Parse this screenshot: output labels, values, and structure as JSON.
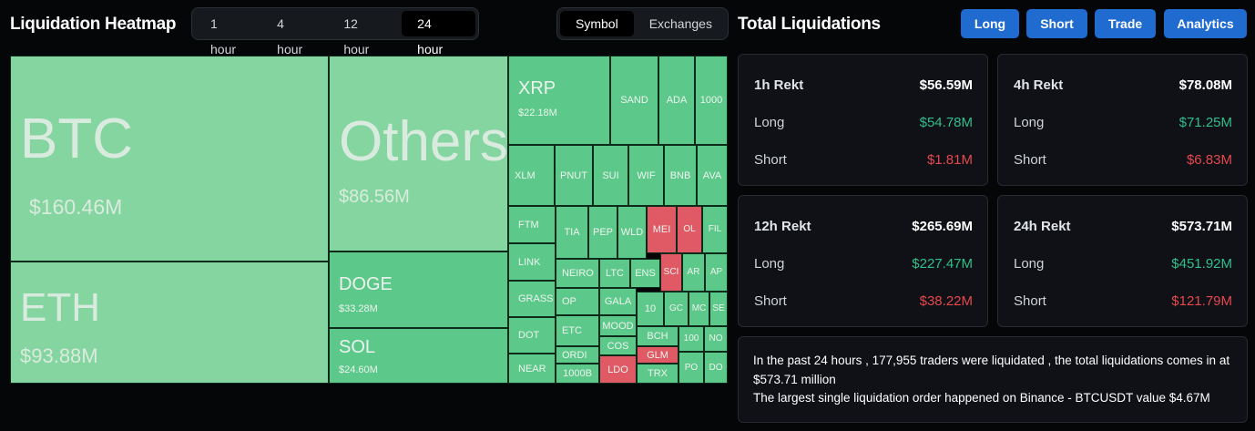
{
  "header": {
    "heatmap_title": "Liquidation Heatmap",
    "time_tabs": [
      "1 hour",
      "4 hour",
      "12 hour",
      "24 hour"
    ],
    "active_time_tab": "24 hour",
    "view_tabs": [
      "Symbol",
      "Exchanges"
    ],
    "active_view_tab": "Symbol",
    "totals_title": "Total Liquidations",
    "action_buttons": [
      "Long",
      "Short",
      "Trade",
      "Analytics"
    ]
  },
  "colors": {
    "long": "#5cc98a",
    "long_light": "#84d59f",
    "short": "#e05a65",
    "accent": "#1f6bd0"
  },
  "treemap": [
    {
      "sym": "BTC",
      "val": "$160.46M",
      "tone": "light",
      "size": "xl"
    },
    {
      "sym": "ETH",
      "val": "$93.88M",
      "tone": "light",
      "size": "lg"
    },
    {
      "sym": "Others",
      "val": "$86.56M",
      "tone": "light",
      "size": "xl"
    },
    {
      "sym": "DOGE",
      "val": "$33.28M",
      "tone": "long",
      "size": "md"
    },
    {
      "sym": "SOL",
      "val": "$24.60M",
      "tone": "long",
      "size": "md"
    },
    {
      "sym": "XRP",
      "val": "$22.18M",
      "tone": "long",
      "size": "md"
    },
    {
      "sym": "SAND",
      "val": "",
      "tone": "long",
      "size": "sm"
    },
    {
      "sym": "ADA",
      "val": "",
      "tone": "long",
      "size": "sm"
    },
    {
      "sym": "1000",
      "val": "",
      "tone": "long",
      "size": "sm"
    },
    {
      "sym": "XLM",
      "val": "",
      "tone": "long",
      "size": "sm"
    },
    {
      "sym": "PNUT",
      "val": "",
      "tone": "long",
      "size": "sm"
    },
    {
      "sym": "SUI",
      "val": "",
      "tone": "long",
      "size": "sm"
    },
    {
      "sym": "WIF",
      "val": "",
      "tone": "long",
      "size": "sm"
    },
    {
      "sym": "BNB",
      "val": "",
      "tone": "long",
      "size": "sm"
    },
    {
      "sym": "AVA",
      "val": "",
      "tone": "long",
      "size": "sm"
    },
    {
      "sym": "FTM",
      "val": "",
      "tone": "long",
      "size": "sm"
    },
    {
      "sym": "TIA",
      "val": "",
      "tone": "long",
      "size": "sm"
    },
    {
      "sym": "PEP",
      "val": "",
      "tone": "long",
      "size": "sm"
    },
    {
      "sym": "WLD",
      "val": "",
      "tone": "long",
      "size": "sm"
    },
    {
      "sym": "MEI",
      "val": "",
      "tone": "short",
      "size": "sm"
    },
    {
      "sym": "OL",
      "val": "",
      "tone": "short",
      "size": "sm"
    },
    {
      "sym": "FIL",
      "val": "",
      "tone": "long",
      "size": "sm"
    },
    {
      "sym": "LINK",
      "val": "",
      "tone": "long",
      "size": "sm"
    },
    {
      "sym": "NEIRO",
      "val": "",
      "tone": "long",
      "size": "sm"
    },
    {
      "sym": "LTC",
      "val": "",
      "tone": "long",
      "size": "sm"
    },
    {
      "sym": "ENS",
      "val": "",
      "tone": "long",
      "size": "sm"
    },
    {
      "sym": "SCI",
      "val": "",
      "tone": "short",
      "size": "sm"
    },
    {
      "sym": "AR",
      "val": "",
      "tone": "long",
      "size": "sm"
    },
    {
      "sym": "AP",
      "val": "",
      "tone": "long",
      "size": "sm"
    },
    {
      "sym": "GRASS",
      "val": "",
      "tone": "long",
      "size": "sm"
    },
    {
      "sym": "OP",
      "val": "",
      "tone": "long",
      "size": "sm"
    },
    {
      "sym": "GALA",
      "val": "",
      "tone": "long",
      "size": "sm"
    },
    {
      "sym": "10",
      "val": "",
      "tone": "long",
      "size": "sm"
    },
    {
      "sym": "GC",
      "val": "",
      "tone": "long",
      "size": "sm"
    },
    {
      "sym": "MC",
      "val": "",
      "tone": "long",
      "size": "sm"
    },
    {
      "sym": "SE",
      "val": "",
      "tone": "long",
      "size": "sm"
    },
    {
      "sym": "DOT",
      "val": "",
      "tone": "long",
      "size": "sm"
    },
    {
      "sym": "ETC",
      "val": "",
      "tone": "long",
      "size": "sm"
    },
    {
      "sym": "MOOD",
      "val": "",
      "tone": "long",
      "size": "sm"
    },
    {
      "sym": "BCH",
      "val": "",
      "tone": "long",
      "size": "sm"
    },
    {
      "sym": "100",
      "val": "",
      "tone": "long",
      "size": "sm"
    },
    {
      "sym": "NO",
      "val": "",
      "tone": "long",
      "size": "sm"
    },
    {
      "sym": "ORDI",
      "val": "",
      "tone": "long",
      "size": "sm"
    },
    {
      "sym": "COS",
      "val": "",
      "tone": "long",
      "size": "sm"
    },
    {
      "sym": "GLM",
      "val": "",
      "tone": "short",
      "size": "sm"
    },
    {
      "sym": "NEAR",
      "val": "",
      "tone": "long",
      "size": "sm"
    },
    {
      "sym": "1000B",
      "val": "",
      "tone": "long",
      "size": "sm"
    },
    {
      "sym": "LDO",
      "val": "",
      "tone": "short",
      "size": "sm"
    },
    {
      "sym": "TRX",
      "val": "",
      "tone": "long",
      "size": "sm"
    },
    {
      "sym": "PO",
      "val": "",
      "tone": "long",
      "size": "sm"
    },
    {
      "sym": "DO",
      "val": "",
      "tone": "long",
      "size": "sm"
    }
  ],
  "stats": [
    {
      "title": "1h Rekt",
      "total": "$56.59M",
      "long_label": "Long",
      "long": "$54.78M",
      "short_label": "Short",
      "short": "$1.81M"
    },
    {
      "title": "4h Rekt",
      "total": "$78.08M",
      "long_label": "Long",
      "long": "$71.25M",
      "short_label": "Short",
      "short": "$6.83M"
    },
    {
      "title": "12h Rekt",
      "total": "$265.69M",
      "long_label": "Long",
      "long": "$227.47M",
      "short_label": "Short",
      "short": "$38.22M"
    },
    {
      "title": "24h Rekt",
      "total": "$573.71M",
      "long_label": "Long",
      "long": "$451.92M",
      "short_label": "Short",
      "short": "$121.79M"
    }
  ],
  "summary": {
    "line1": "In the past 24 hours , 177,955 traders were liquidated , the total liquidations comes in at $573.71 million",
    "line2": "The largest single liquidation order happened on Binance - BTCUSDT value $4.67M"
  }
}
